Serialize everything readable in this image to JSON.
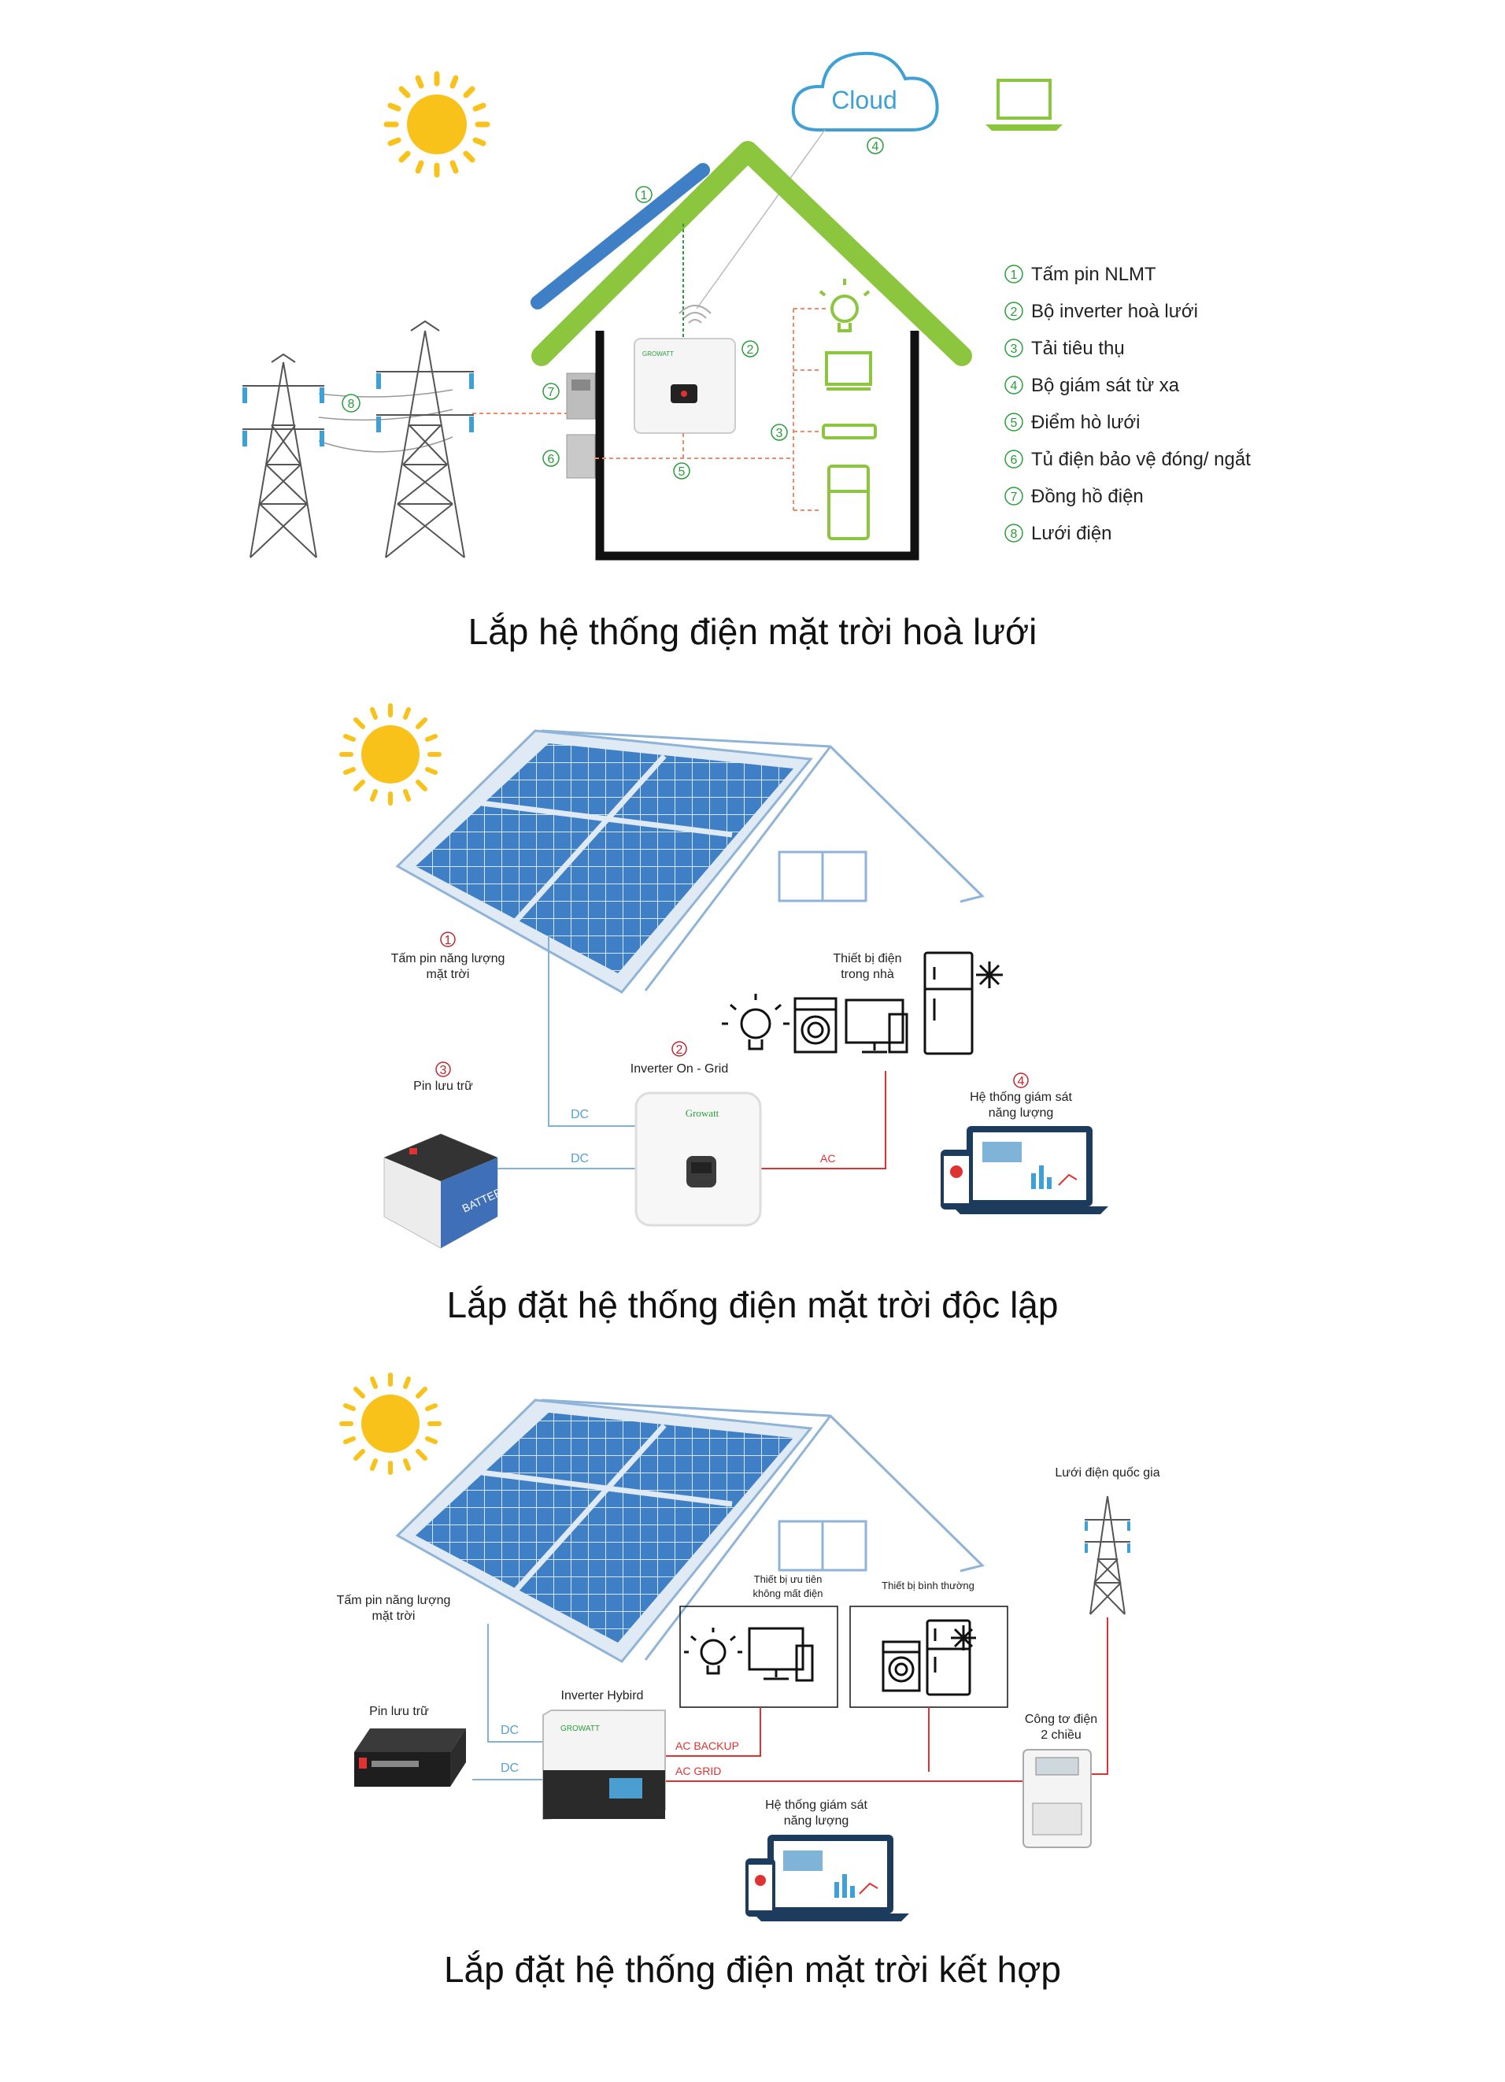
{
  "diagram1": {
    "cloud_label": "Cloud",
    "legend": [
      {
        "num": "1",
        "text": "Tấm pin NLMT"
      },
      {
        "num": "2",
        "text": "Bộ inverter hoà lưới"
      },
      {
        "num": "3",
        "text": "Tải tiêu thụ"
      },
      {
        "num": "4",
        "text": "Bộ giám sát từ xa"
      },
      {
        "num": "5",
        "text": "Điểm hò lưới"
      },
      {
        "num": "6",
        "text": "Tủ điện bảo vệ đóng/ ngắt"
      },
      {
        "num": "7",
        "text": "Đồng hồ điện"
      },
      {
        "num": "8",
        "text": "Lưới điện"
      }
    ],
    "inverter_brand": "GROWATT",
    "caption": "Lắp hệ thống điện mặt trời hoà lưới"
  },
  "diagram2": {
    "panel_label_line1": "Tấm pin năng lượng",
    "panel_label_line2": "mặt trời",
    "panel_num": "1",
    "devices_line1": "Thiết bị điện",
    "devices_line2": "trong nhà",
    "inverter_num": "2",
    "inverter_label": "Inverter On - Grid",
    "battery_num": "3",
    "battery_label": "Pin lưu trữ",
    "battery_text": "BATTERY",
    "monitor_num": "4",
    "monitor_line1": "Hệ thống giám sát",
    "monitor_line2": "năng lượng",
    "dc1": "DC",
    "dc2": "DC",
    "ac": "AC",
    "inverter_brand": "Growatt",
    "caption": "Lắp đặt hệ thống điện mặt trời độc lập"
  },
  "diagram3": {
    "panel_label_line1": "Tấm pin năng lượng",
    "panel_label_line2": "mặt trời",
    "priority_line1": "Thiết bị ưu tiên",
    "priority_line2": "không mất điện",
    "normal_label": "Thiết bị bình thường",
    "grid_label": "Lưới điện quốc gia",
    "battery_label": "Pin lưu trữ",
    "inverter_label": "Inverter Hybird",
    "dc1": "DC",
    "dc2": "DC",
    "ac_backup": "AC BACKUP",
    "ac_grid": "AC GRID",
    "meter_line1": "Công tơ điện",
    "meter_line2": "2 chiều",
    "monitor_line1": "Hệ thống giám sát",
    "monitor_line2": "năng lượng",
    "inverter_brand": "GROWATT",
    "caption": "Lắp đặt hệ thống điện mặt trời kết hợp"
  },
  "colors": {
    "green": "#8cc63f",
    "solar_blue": "#3f7fc6",
    "sun": "#f9c21b",
    "wire_red": "#e03232",
    "wire_blue": "#7fb3d8"
  }
}
